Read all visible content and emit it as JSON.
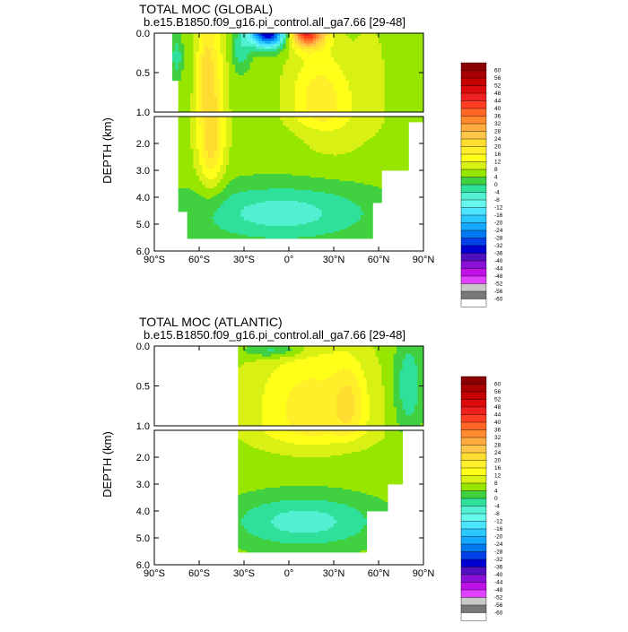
{
  "chart_data": [
    {
      "type": "heatmap",
      "title": "TOTAL MOC (GLOBAL)",
      "subtitle": "b.e15.B1850.f09_g16.pi_control.all_ga7.66 [29-48]",
      "xlabel": "",
      "ylabel": "DEPTH (km)",
      "xlim": [
        -90,
        90
      ],
      "x_ticks": [
        "90°S",
        "60°S",
        "30°S",
        "0°",
        "30°N",
        "60°N",
        "90°N"
      ],
      "y_ticks_upper": [
        "0.0",
        "0.5",
        "1.0"
      ],
      "y_ticks_lower": [
        "2.0",
        "3.0",
        "4.0",
        "5.0",
        "6.0"
      ],
      "upper_depth_range_km": [
        0,
        1
      ],
      "lower_depth_range_km": [
        1,
        6
      ],
      "features": [
        {
          "name": "southern_deacon_cell",
          "lat_range": [
            -65,
            -42
          ],
          "depth_range_km": [
            0,
            3.6
          ],
          "value": 20
        },
        {
          "name": "equatorial_negative_cell",
          "lat_range": [
            -25,
            -2
          ],
          "depth_range_km": [
            0,
            0.1
          ],
          "value": -36
        },
        {
          "name": "northern_positive_cell",
          "lat_range": [
            0,
            25
          ],
          "depth_range_km": [
            0,
            0.1
          ],
          "value": 40
        },
        {
          "name": "nh_overturning_cell",
          "lat_range": [
            0,
            52
          ],
          "depth_range_km": [
            0.3,
            1.4
          ],
          "value": 16
        },
        {
          "name": "abyssal_negative_cell",
          "lat_range": [
            -72,
            55
          ],
          "depth_range_km": [
            3.5,
            5.5
          ],
          "value": -4
        }
      ]
    },
    {
      "type": "heatmap",
      "title": "TOTAL MOC (ATLANTIC)",
      "subtitle": "b.e15.B1850.f09_g16.pi_control.all_ga7.66 [29-48]",
      "xlabel": "",
      "ylabel": "DEPTH (km)",
      "xlim": [
        -90,
        90
      ],
      "x_ticks": [
        "90°S",
        "60°S",
        "30°S",
        "0°",
        "30°N",
        "60°N",
        "90°N"
      ],
      "y_ticks_upper": [
        "0.0",
        "0.5",
        "1.0"
      ],
      "y_ticks_lower": [
        "2.0",
        "3.0",
        "4.0",
        "5.0",
        "6.0"
      ],
      "upper_depth_range_km": [
        0,
        1
      ],
      "lower_depth_range_km": [
        1,
        6
      ],
      "data_lat_range": [
        -34,
        90
      ],
      "features": [
        {
          "name": "amoc_upper_cell",
          "lat_range": [
            -34,
            60
          ],
          "depth_range_km": [
            0.1,
            1.5
          ],
          "value": 16
        },
        {
          "name": "amoc_core",
          "lat_range": [
            30,
            50
          ],
          "depth_range_km": [
            0.3,
            1.1
          ],
          "value": 20
        },
        {
          "name": "aabw_cell",
          "lat_range": [
            -34,
            50
          ],
          "depth_range_km": [
            3.5,
            5.5
          ],
          "value": -4
        }
      ]
    }
  ],
  "colorbar": {
    "levels": [
      "60",
      "56",
      "52",
      "48",
      "44",
      "40",
      "36",
      "32",
      "28",
      "24",
      "20",
      "16",
      "12",
      "8",
      "4",
      "0",
      "-4",
      "-8",
      "-12",
      "-16",
      "-20",
      "-24",
      "-28",
      "-32",
      "-36",
      "-40",
      "-44",
      "-48",
      "-52",
      "-56",
      "-60"
    ],
    "colors": [
      "#8b0000",
      "#a80000",
      "#c40000",
      "#dc0a0a",
      "#ee2020",
      "#ff3d22",
      "#ff6626",
      "#ff8a30",
      "#ffab40",
      "#ffc64a",
      "#ffdd30",
      "#ffee2a",
      "#ffff1a",
      "#d8f014",
      "#96e600",
      "#40d040",
      "#2fe09a",
      "#52f0d0",
      "#66f8ec",
      "#4ce4ff",
      "#2ac8ff",
      "#14a8ff",
      "#0078f0",
      "#0040e6",
      "#0000d0",
      "#5010c0",
      "#8a10d8",
      "#c010e8",
      "#e040ff",
      "#c8c8c8",
      "#787878",
      "#ffffff"
    ]
  }
}
